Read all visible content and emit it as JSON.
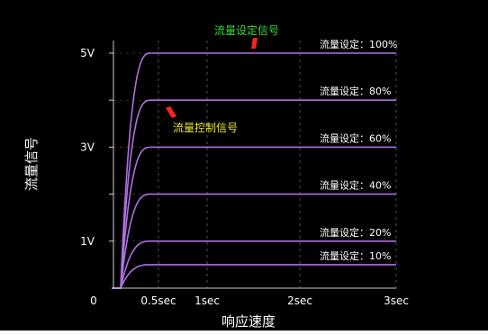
{
  "chart_data": {
    "type": "line",
    "xlabel": "响应速度",
    "ylabel": "流量信号",
    "x_ticks": [
      {
        "value": 0,
        "label": "0"
      },
      {
        "value": 0.5,
        "label": "0.5sec"
      },
      {
        "value": 1,
        "label": "1sec"
      },
      {
        "value": 2,
        "label": "2sec"
      },
      {
        "value": 3,
        "label": "3sec"
      }
    ],
    "y_ticks": [
      {
        "value": 1,
        "label": "1V"
      },
      {
        "value": 3,
        "label": "3V"
      },
      {
        "value": 5,
        "label": "5V"
      }
    ],
    "xlim": [
      0,
      3
    ],
    "ylim": [
      0,
      5.2
    ],
    "series": [
      {
        "name": "流量设定：100%",
        "level": 5.0
      },
      {
        "name": "流量设定：80%",
        "level": 4.0
      },
      {
        "name": "流量设定：60%",
        "level": 3.0
      },
      {
        "name": "流量设定：40%",
        "level": 2.0
      },
      {
        "name": "流量设定：20%",
        "level": 1.0
      },
      {
        "name": "流量设定：10%",
        "level": 0.5
      }
    ],
    "annotations": [
      {
        "text": "流量设定信号",
        "color": "#33dd33"
      },
      {
        "text": "流量控制信号",
        "color": "#e8e830"
      }
    ],
    "colors": {
      "background": "#000000",
      "line": "#b070e0",
      "grid": "#bbbbbb",
      "text": "#ffffff",
      "arrow": "#ff2020"
    }
  }
}
